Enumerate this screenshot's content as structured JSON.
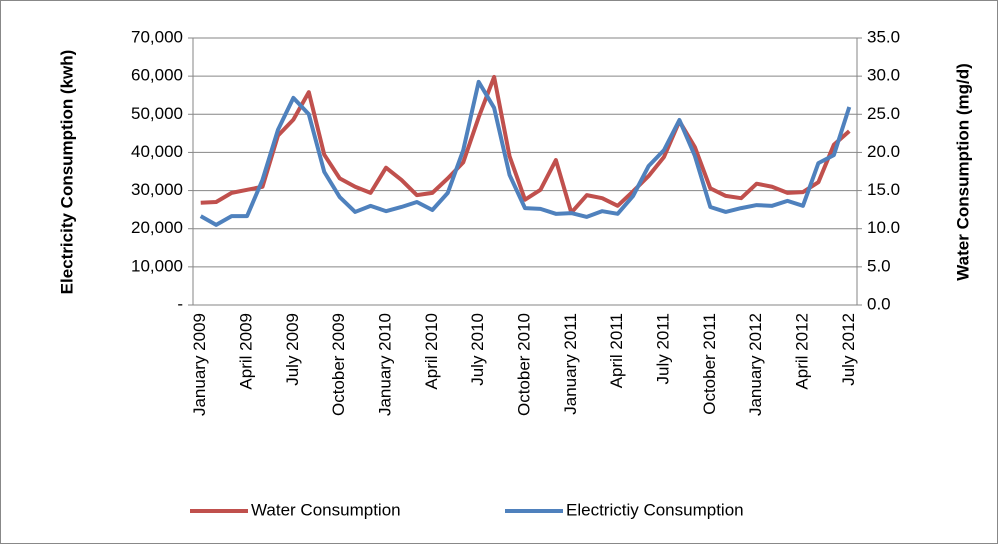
{
  "chart_data": {
    "type": "line",
    "y_label": "Electricity Consumption (kwh)",
    "y2_label": "Water Consumption (mg/d)",
    "categories": [
      "January 2009",
      null,
      null,
      "April 2009",
      null,
      null,
      "July 2009",
      null,
      null,
      "October 2009",
      null,
      null,
      "January 2010",
      null,
      null,
      "April 2010",
      null,
      null,
      "July 2010",
      null,
      null,
      "October 2010",
      null,
      null,
      "January 2011",
      null,
      null,
      "April 2011",
      null,
      null,
      "July 2011",
      null,
      null,
      "October 2011",
      null,
      null,
      "January 2012",
      null,
      null,
      "April 2012",
      null,
      null,
      "July 2012"
    ],
    "series": [
      {
        "name": "Water Consumption",
        "color": "#c0504d",
        "axis": "y2",
        "values": [
          13.4,
          13.5,
          14.7,
          15.1,
          15.5,
          22.2,
          24.3,
          27.9,
          19.7,
          16.6,
          15.5,
          14.7,
          18.0,
          16.4,
          14.4,
          14.7,
          16.6,
          18.7,
          24.6,
          29.9,
          19.5,
          13.8,
          15.1,
          19.0,
          12.1,
          14.4,
          14.0,
          13.0,
          14.9,
          16.9,
          19.4,
          24.1,
          20.7,
          15.3,
          14.3,
          14.0,
          15.9,
          15.5,
          14.7,
          14.8,
          16.1,
          21.0,
          22.8
        ]
      },
      {
        "name": "Electrictiy Consumption",
        "color": "#4f81bd",
        "values": [
          23300,
          21000,
          23300,
          23300,
          32800,
          45900,
          54300,
          50000,
          34900,
          28300,
          24400,
          26000,
          24600,
          25700,
          27000,
          24900,
          29400,
          40600,
          58500,
          51700,
          34100,
          25400,
          25200,
          23900,
          24100,
          23100,
          24600,
          23900,
          28600,
          36400,
          40600,
          48500,
          39100,
          25700,
          24400,
          25400,
          26200,
          26000,
          27300,
          26000,
          37200,
          39300,
          51900
        ]
      }
    ],
    "ylim": [
      0,
      70000
    ],
    "yticks": [
      {
        "value": 0,
        "label": "-"
      },
      {
        "value": 10000,
        "label": "10,000"
      },
      {
        "value": 20000,
        "label": "20,000"
      },
      {
        "value": 30000,
        "label": "30,000"
      },
      {
        "value": 40000,
        "label": "40,000"
      },
      {
        "value": 50000,
        "label": "50,000"
      },
      {
        "value": 60000,
        "label": "60,000"
      },
      {
        "value": 70000,
        "label": "70,000"
      }
    ],
    "y2lim": [
      0,
      35
    ],
    "y2ticks": [
      {
        "value": 0,
        "label": "0.0"
      },
      {
        "value": 5,
        "label": "5.0"
      },
      {
        "value": 10,
        "label": "10.0"
      },
      {
        "value": 15,
        "label": "15.0"
      },
      {
        "value": 20,
        "label": "20.0"
      },
      {
        "value": 25,
        "label": "25.0"
      },
      {
        "value": 30,
        "label": "30.0"
      },
      {
        "value": 35,
        "label": "35.0"
      }
    ],
    "grid": true,
    "legend": "bottom"
  }
}
